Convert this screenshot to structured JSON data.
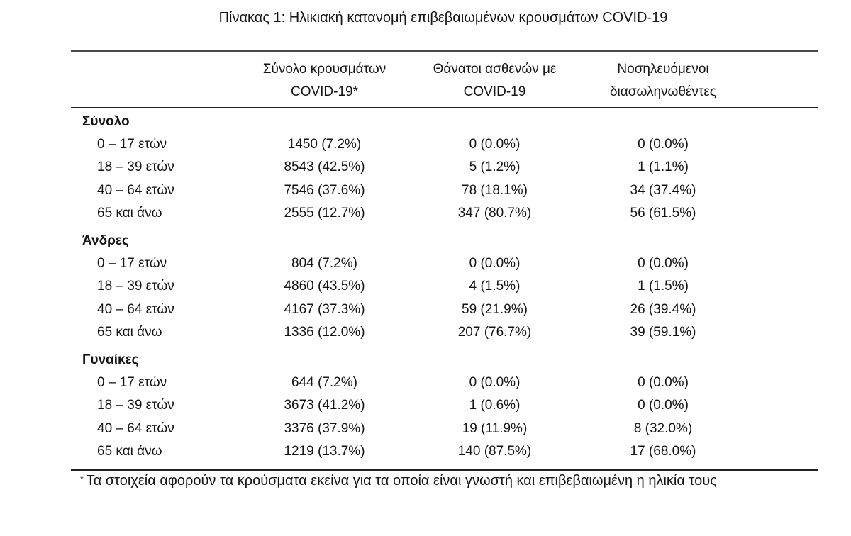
{
  "caption": "Πίνακας 1: Ηλικιακή κατανομή επιβεβαιωμένων κρουσμάτων COVID-19",
  "headers": [
    {
      "line1": "Σύνολο κρουσμάτων",
      "line2": "COVID-19*"
    },
    {
      "line1": "Θάνατοι ασθενών με",
      "line2": "COVID-19"
    },
    {
      "line1": "Νοσηλευόμενοι",
      "line2": "διασωληνωθέντες"
    }
  ],
  "groups": [
    {
      "title": "Σύνολο",
      "rows": [
        {
          "age": "0 – 17 ετών",
          "cases": "1450 (7.2%)",
          "deaths": "0 (0.0%)",
          "intubated": "0 (0.0%)"
        },
        {
          "age": "18 – 39 ετών",
          "cases": "8543 (42.5%)",
          "deaths": "5 (1.2%)",
          "intubated": "1 (1.1%)"
        },
        {
          "age": "40 – 64 ετών",
          "cases": "7546 (37.6%)",
          "deaths": "78 (18.1%)",
          "intubated": "34 (37.4%)"
        },
        {
          "age": "65 και άνω",
          "cases": "2555 (12.7%)",
          "deaths": "347 (80.7%)",
          "intubated": "56 (61.5%)"
        }
      ]
    },
    {
      "title": "Άνδρες",
      "rows": [
        {
          "age": "0 – 17 ετών",
          "cases": "804 (7.2%)",
          "deaths": "0 (0.0%)",
          "intubated": "0 (0.0%)"
        },
        {
          "age": "18 – 39 ετών",
          "cases": "4860 (43.5%)",
          "deaths": "4 (1.5%)",
          "intubated": "1 (1.5%)"
        },
        {
          "age": "40 – 64 ετών",
          "cases": "4167 (37.3%)",
          "deaths": "59 (21.9%)",
          "intubated": "26 (39.4%)"
        },
        {
          "age": "65 και άνω",
          "cases": "1336 (12.0%)",
          "deaths": "207 (76.7%)",
          "intubated": "39 (59.1%)"
        }
      ]
    },
    {
      "title": "Γυναίκες",
      "rows": [
        {
          "age": "0 – 17 ετών",
          "cases": "644 (7.2%)",
          "deaths": "0 (0.0%)",
          "intubated": "0 (0.0%)"
        },
        {
          "age": "18 – 39 ετών",
          "cases": "3673 (41.2%)",
          "deaths": "1 (0.6%)",
          "intubated": "0 (0.0%)"
        },
        {
          "age": "40 – 64 ετών",
          "cases": "3376 (37.9%)",
          "deaths": "19 (11.9%)",
          "intubated": "8 (32.0%)"
        },
        {
          "age": "65 και άνω",
          "cases": "1219 (13.7%)",
          "deaths": "140 (87.5%)",
          "intubated": "17 (68.0%)"
        }
      ]
    }
  ],
  "footnote": {
    "marker": "*",
    "text": "Τα στοιχεία αφορούν τα κρούσματα εκείνα για τα οποία είναι γνωστή και επιβεβαιωμένη η ηλικία τους"
  }
}
